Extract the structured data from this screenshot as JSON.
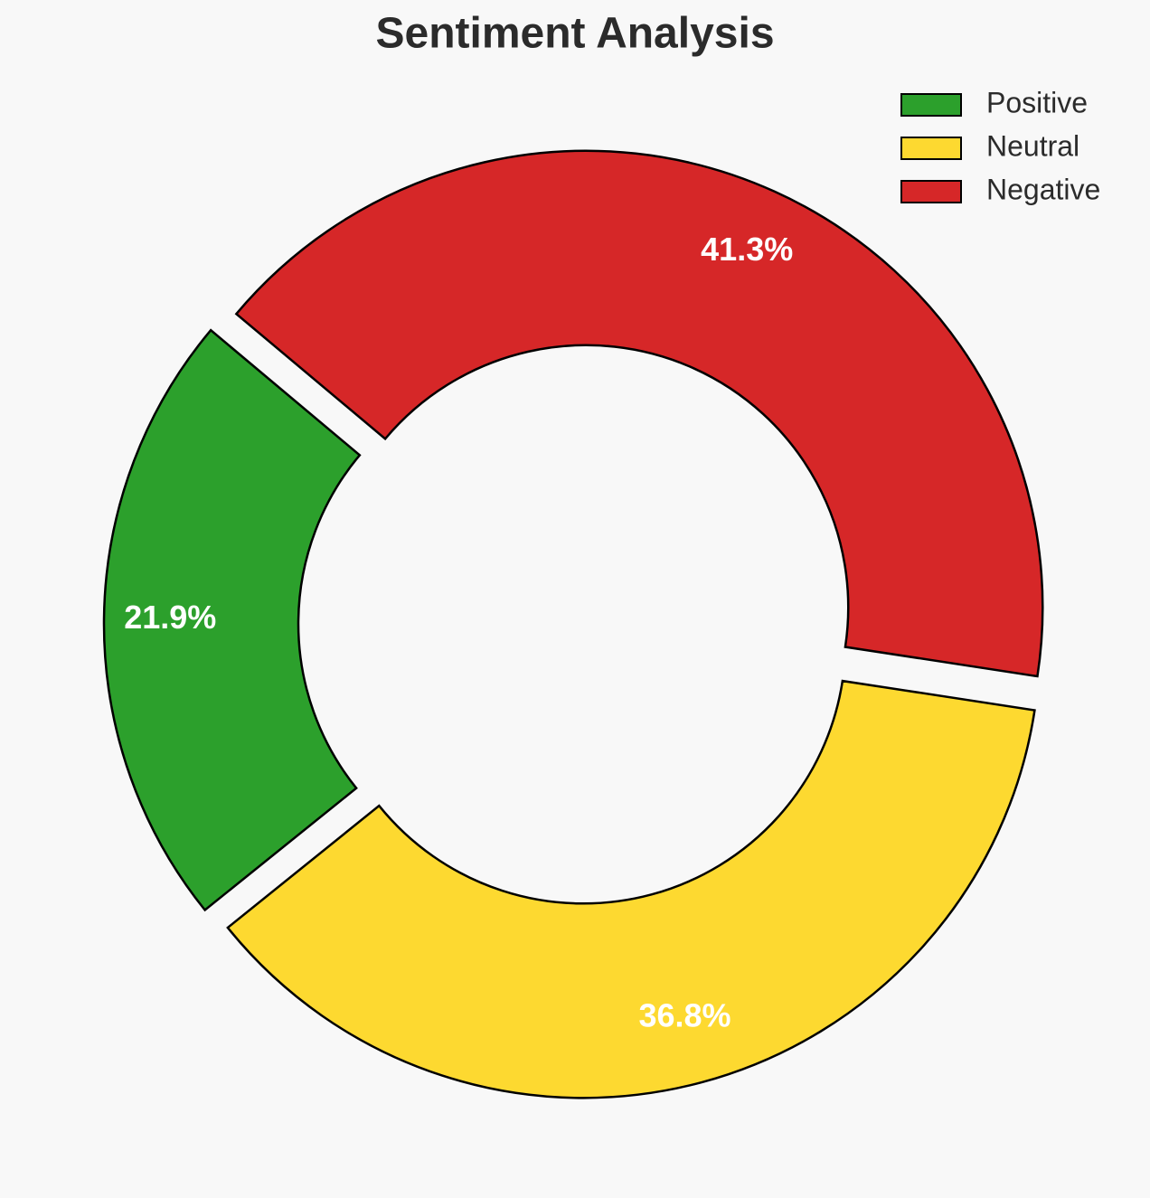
{
  "chart_data": {
    "type": "donut",
    "title": "Sentiment Analysis",
    "categories": [
      "Positive",
      "Neutral",
      "Negative"
    ],
    "values": [
      21.9,
      36.8,
      41.3
    ],
    "value_labels": [
      "21.9%",
      "36.8%",
      "41.3%"
    ],
    "colors": [
      "#2ca02c",
      "#fdd930",
      "#d62728"
    ],
    "legend": "upper right"
  }
}
